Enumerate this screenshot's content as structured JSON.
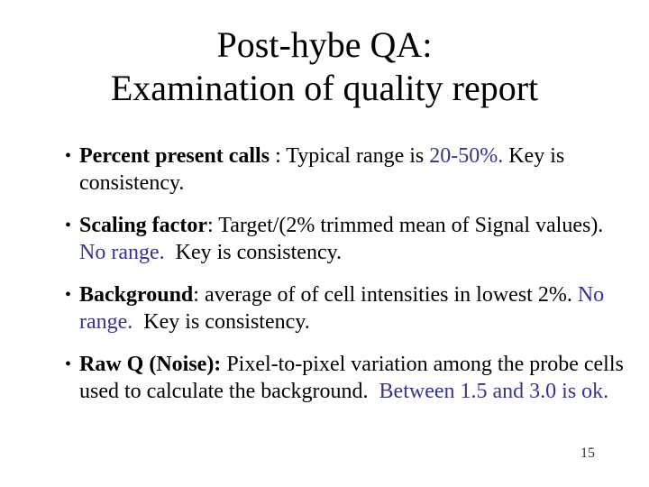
{
  "slide": {
    "colors": {
      "background": "#ffffff",
      "text": "#000000",
      "accent_blue": "#333399"
    },
    "title": {
      "line1": "Post-hybe QA:",
      "line2": "Examination of quality report"
    },
    "bullets": [
      {
        "segments": [
          {
            "text": "Percent present calls",
            "bold": true,
            "blue": false
          },
          {
            "text": " : Typical range is ",
            "bold": false,
            "blue": false
          },
          {
            "text": "20-50%.",
            "bold": false,
            "blue": true
          },
          {
            "text": " Key is consistency.",
            "bold": false,
            "blue": false
          }
        ]
      },
      {
        "segments": [
          {
            "text": "Scaling factor",
            "bold": true,
            "blue": false
          },
          {
            "text": ": Target/(2% trimmed mean of Signal values). ",
            "bold": false,
            "blue": false
          },
          {
            "text": "No range.",
            "bold": false,
            "blue": true
          },
          {
            "text": "  Key is consistency.",
            "bold": false,
            "blue": false
          }
        ]
      },
      {
        "segments": [
          {
            "text": "Background",
            "bold": true,
            "blue": false
          },
          {
            "text": ": average of of cell intensities in lowest 2%. ",
            "bold": false,
            "blue": false
          },
          {
            "text": "No range.",
            "bold": false,
            "blue": true
          },
          {
            "text": "  Key is consistency.",
            "bold": false,
            "blue": false
          }
        ]
      },
      {
        "segments": [
          {
            "text": "Raw Q (Noise):",
            "bold": true,
            "blue": false
          },
          {
            "text": " Pixel-to-pixel variation among the probe cells used to calculate the background.  ",
            "bold": false,
            "blue": false
          },
          {
            "text": "Between 1.5 and 3.0 is ok.",
            "bold": false,
            "blue": true
          }
        ]
      }
    ],
    "page_number": "15"
  }
}
